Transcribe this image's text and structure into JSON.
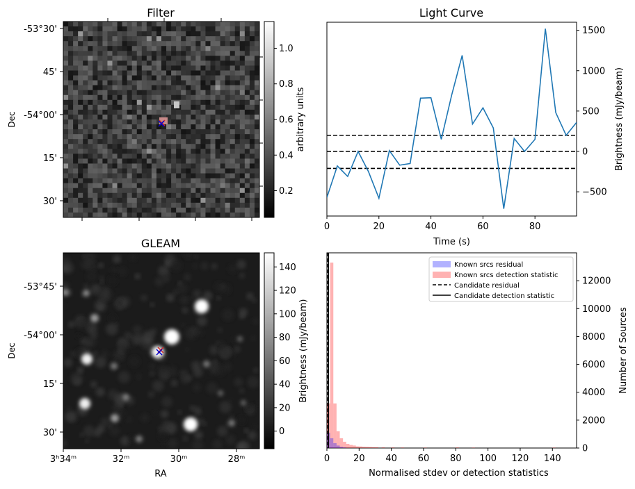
{
  "filter_panel": {
    "title": "Filter",
    "ylabel": "Dec",
    "y_ticks": [
      "-53°30'",
      "45'",
      "-54°00'",
      "15'",
      "30'"
    ],
    "colorbar": {
      "label": "arbitrary units",
      "ticks": [
        "0.2",
        "0.4",
        "0.6",
        "0.8",
        "1.0"
      ],
      "range": [
        0.05,
        1.15
      ]
    }
  },
  "gleam_panel": {
    "title": "GLEAM",
    "ylabel": "Dec",
    "xlabel": "RA",
    "y_ticks": [
      "-53°45'",
      "-54°00'",
      "15'",
      "30'"
    ],
    "x_ticks": [
      {
        "label": "3ʰ34ᵐ"
      },
      {
        "label": "32ᵐ"
      },
      {
        "label": "30ᵐ"
      },
      {
        "label": "28ᵐ"
      }
    ],
    "colorbar": {
      "label": "Brightness (mJy/beam)",
      "ticks": [
        "0",
        "20",
        "40",
        "60",
        "80",
        "100",
        "120",
        "140"
      ],
      "range": [
        -15,
        152
      ]
    }
  },
  "chart_data": [
    {
      "type": "line",
      "title": "Light Curve",
      "xlabel": "Time (s)",
      "ylabel": "Brightness (mJy/beam)",
      "xlim": [
        0,
        96
      ],
      "ylim": [
        -800,
        1600
      ],
      "x_ticks": [
        0,
        20,
        40,
        60,
        80
      ],
      "y_ticks": [
        -500,
        0,
        500,
        1000,
        1500
      ],
      "series": [
        {
          "color": "#1f77b4",
          "x": [
            0,
            4,
            8,
            12,
            16,
            20,
            24,
            28,
            32,
            36,
            40,
            44,
            48,
            52,
            56,
            60,
            64,
            68,
            72,
            76,
            80,
            84,
            88,
            92,
            96
          ],
          "y": [
            -570,
            -180,
            -310,
            0,
            -250,
            -580,
            10,
            -170,
            -150,
            660,
            665,
            150,
            700,
            1190,
            340,
            540,
            290,
            -710,
            160,
            0,
            150,
            1520,
            480,
            200,
            360
          ]
        }
      ],
      "hlines": [
        {
          "y": 200,
          "style": "dashed"
        },
        {
          "y": 0,
          "style": "dashed"
        },
        {
          "y": -210,
          "style": "dashed"
        }
      ]
    },
    {
      "type": "histogram",
      "xlabel": "Normalised stdev or detection statistics",
      "ylabel": "Number of Sources",
      "xlim": [
        0,
        155
      ],
      "ylim": [
        0,
        14000
      ],
      "x_ticks": [
        0,
        20,
        40,
        60,
        80,
        100,
        120,
        140
      ],
      "y_ticks": [
        0,
        2000,
        4000,
        6000,
        8000,
        10000,
        12000
      ],
      "bin_width": 2,
      "series": [
        {
          "name": "Known srcs residual",
          "color": "#0000ff",
          "opacity": 0.3,
          "bin_starts": [
            0,
            2,
            4,
            6,
            8,
            10
          ],
          "counts": [
            1100,
            700,
            350,
            180,
            80,
            40
          ]
        },
        {
          "name": "Known srcs detection statistic",
          "color": "#ff0000",
          "opacity": 0.3,
          "bin_starts": [
            0,
            2,
            4,
            6,
            8,
            10,
            12,
            14,
            16,
            18,
            20,
            22,
            24,
            26,
            28,
            30,
            34,
            40,
            46,
            60,
            80,
            90,
            140
          ],
          "counts": [
            3200,
            13300,
            3200,
            1200,
            700,
            450,
            300,
            220,
            180,
            120,
            110,
            90,
            80,
            70,
            60,
            50,
            45,
            40,
            35,
            30,
            40,
            30,
            30
          ]
        }
      ],
      "vlines": [
        {
          "name": "Candidate residual",
          "x": 0.6,
          "style": "dashed"
        },
        {
          "name": "Candidate detection statistic",
          "x": 1.0,
          "style": "solid"
        }
      ],
      "legend_position": "top-right"
    }
  ]
}
